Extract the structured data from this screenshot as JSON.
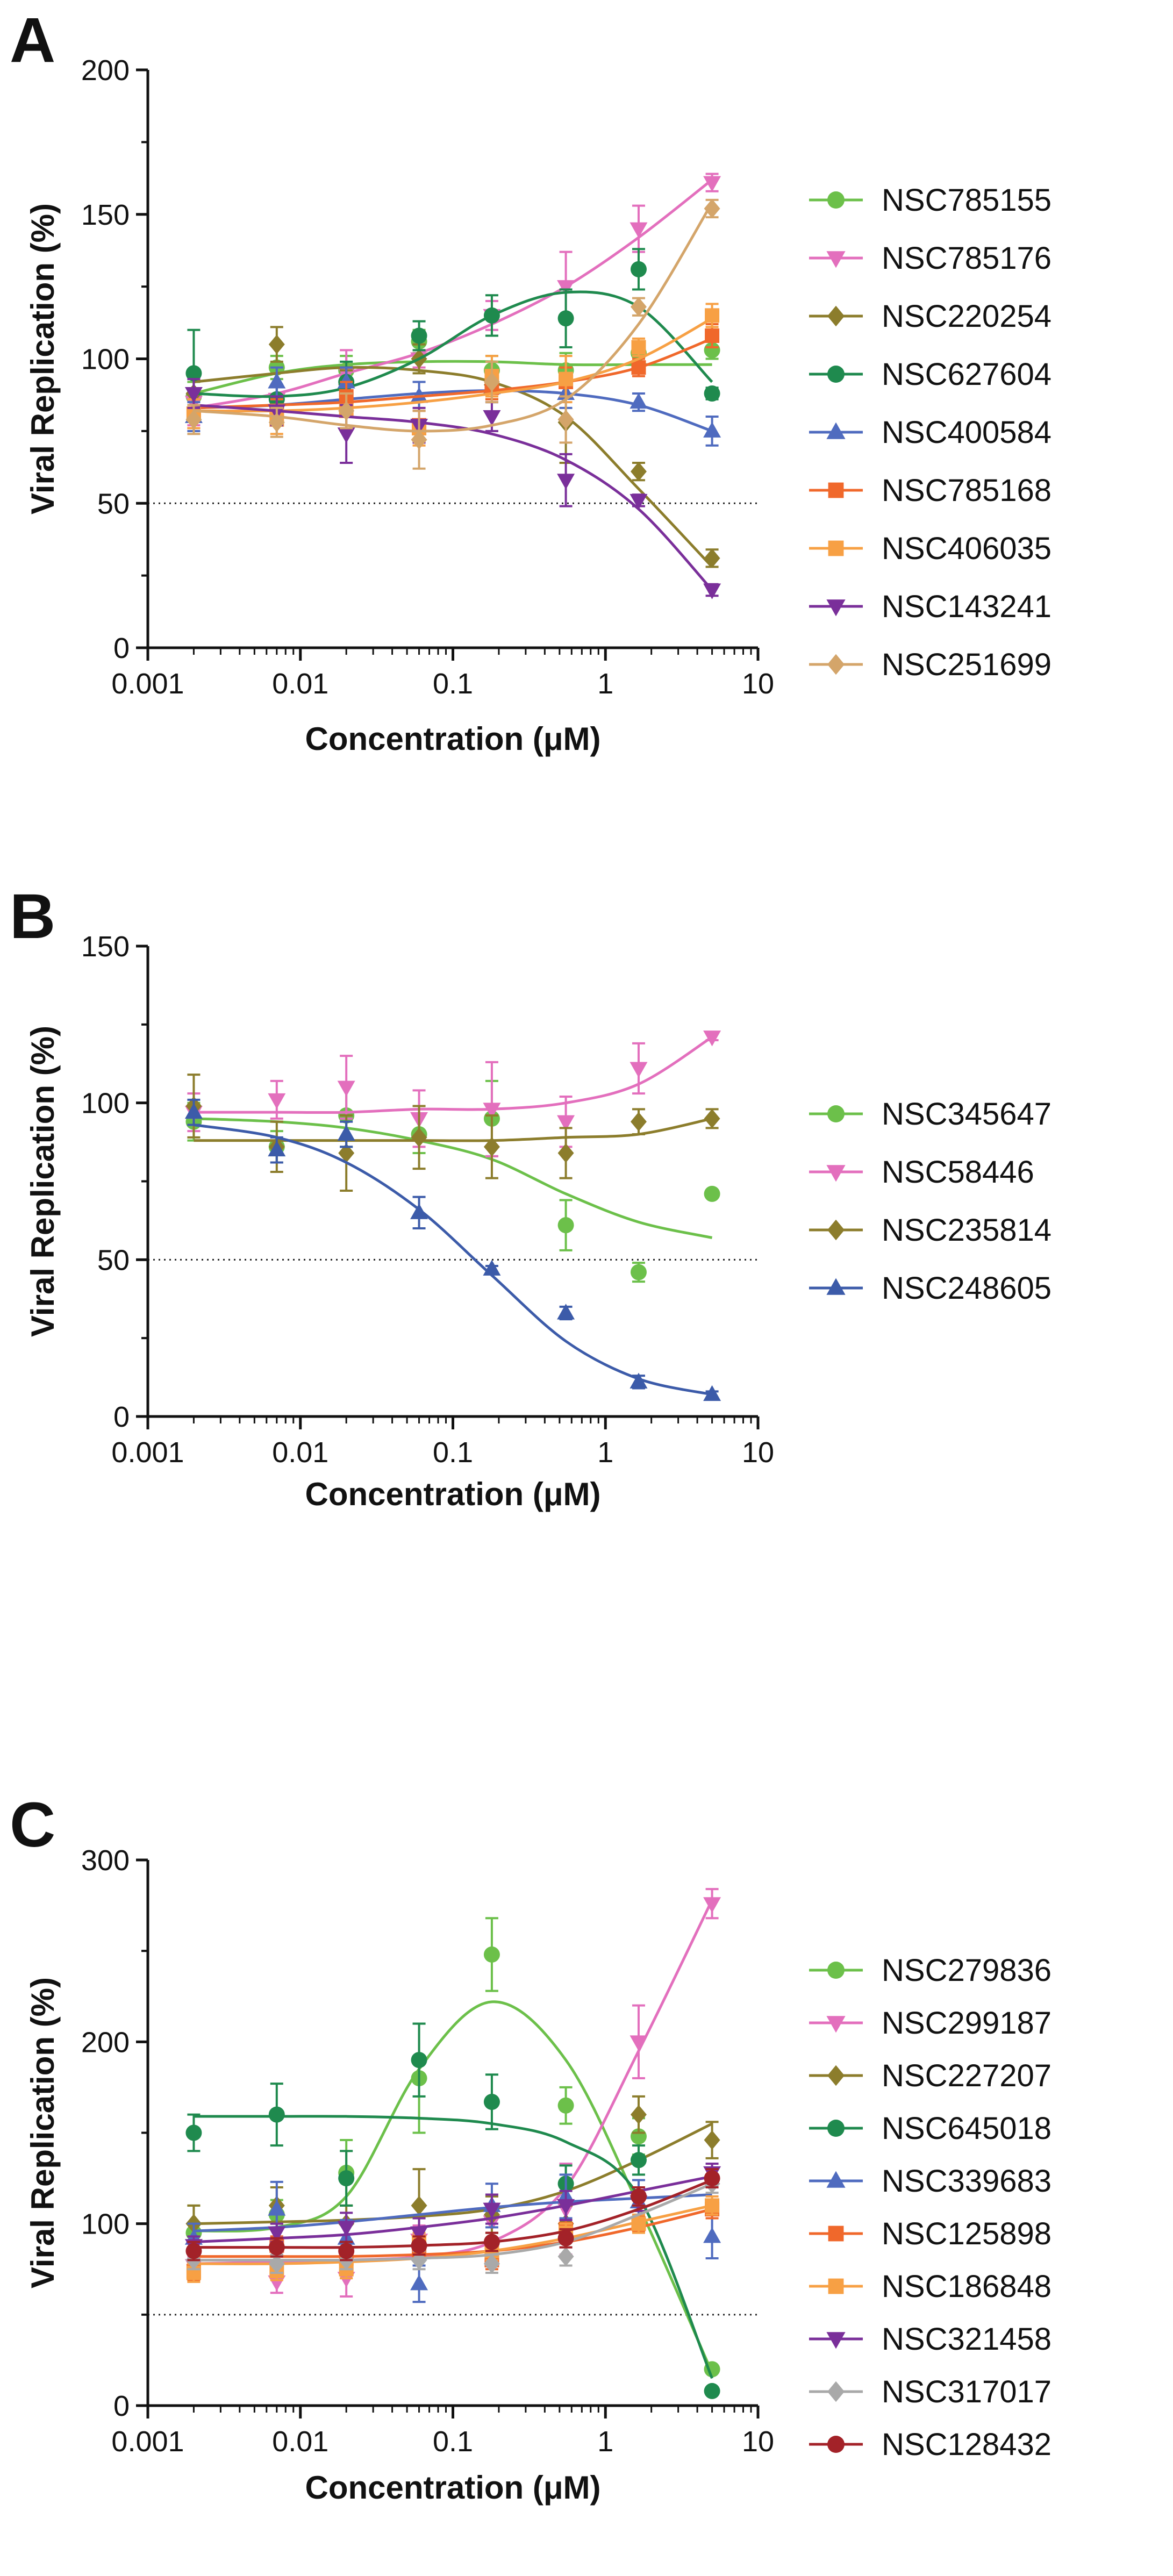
{
  "figure": {
    "panel_count": 3
  },
  "chart_data": [
    {
      "panel": "A",
      "type": "scatter",
      "title": "",
      "xlabel": "Concentration (μM)",
      "ylabel": "Viral Replication (%)",
      "xscale": "log",
      "xlim": [
        0.001,
        10
      ],
      "ylim": [
        0,
        200
      ],
      "x_ticks": [
        0.001,
        0.01,
        0.1,
        1,
        10
      ],
      "x_tick_labels": [
        "0.001",
        "0.01",
        "0.1",
        "1",
        "10"
      ],
      "y_ticks": [
        0,
        50,
        100,
        150,
        200
      ],
      "y_tick_labels": [
        "0",
        "50",
        "100",
        "150",
        "200"
      ],
      "reference_line": {
        "y": 50,
        "style": "dotted"
      },
      "legend_position": "right",
      "x": [
        0.002,
        0.007,
        0.02,
        0.06,
        0.18,
        0.55,
        1.65,
        5
      ],
      "series": [
        {
          "name": "NSC785155",
          "marker": "circle",
          "color": "#6cc04a",
          "values": [
            87,
            97,
            96,
            106,
            96,
            96,
            102,
            103
          ],
          "errors": [
            5,
            4,
            5,
            4,
            5,
            6,
            3,
            3
          ],
          "fit": [
            88,
            95,
            98,
            99,
            99,
            98,
            98,
            98
          ]
        },
        {
          "name": "NSC785176",
          "marker": "triangle-down",
          "color": "#e36fbd",
          "values": [
            85,
            86,
            95,
            100,
            115,
            125,
            145,
            161
          ],
          "errors": [
            8,
            5,
            8,
            3,
            5,
            12,
            8,
            3
          ],
          "fit": [
            83,
            88,
            95,
            102,
            112,
            125,
            142,
            162
          ]
        },
        {
          "name": "NSC220254",
          "marker": "diamond",
          "color": "#8c7d2c",
          "values": [
            88,
            105,
            91,
            100,
            91,
            78,
            61,
            31
          ],
          "errors": [
            7,
            6,
            5,
            5,
            5,
            14,
            3,
            3
          ],
          "fit": [
            92,
            95,
            97,
            96,
            92,
            80,
            55,
            28
          ]
        },
        {
          "name": "NSC627604",
          "marker": "circle",
          "color": "#1f8a4e",
          "values": [
            95,
            86,
            92,
            108,
            115,
            114,
            131,
            88
          ],
          "errors": [
            15,
            5,
            7,
            5,
            7,
            10,
            7,
            2
          ],
          "fit": [
            88,
            87,
            90,
            100,
            115,
            123,
            118,
            92
          ]
        },
        {
          "name": "NSC400584",
          "marker": "triangle-up",
          "color": "#4f6bbf",
          "values": [
            80,
            92,
            92,
            87,
            90,
            88,
            85,
            75
          ],
          "errors": [
            5,
            5,
            5,
            5,
            5,
            5,
            3,
            5
          ],
          "fit": [
            83,
            84,
            86,
            88,
            89,
            88,
            84,
            75
          ]
        },
        {
          "name": "NSC785168",
          "marker": "square",
          "color": "#f0682b",
          "values": [
            81,
            82,
            87,
            77,
            90,
            92,
            97,
            108
          ],
          "errors": [
            5,
            4,
            5,
            5,
            4,
            5,
            3,
            4
          ],
          "fit": [
            83,
            84,
            85,
            87,
            89,
            92,
            97,
            107
          ]
        },
        {
          "name": "NSC406035",
          "marker": "square",
          "color": "#f7a044",
          "values": [
            81,
            79,
            82,
            76,
            94,
            93,
            104,
            115
          ],
          "errors": [
            5,
            5,
            6,
            6,
            7,
            8,
            3,
            4
          ],
          "fit": [
            82,
            82,
            83,
            85,
            88,
            92,
            100,
            114
          ]
        },
        {
          "name": "NSC143241",
          "marker": "triangle-down",
          "color": "#7a2f9a",
          "values": [
            88,
            82,
            74,
            77,
            80,
            58,
            51,
            20
          ],
          "errors": [
            5,
            5,
            10,
            6,
            5,
            9,
            2,
            2
          ],
          "fit": [
            84,
            82,
            80,
            78,
            74,
            65,
            48,
            20
          ]
        },
        {
          "name": "NSC251699",
          "marker": "diamond",
          "color": "#d4a56a",
          "values": [
            79,
            78,
            82,
            72,
            92,
            79,
            118,
            152
          ],
          "errors": [
            5,
            5,
            6,
            10,
            7,
            8,
            3,
            3
          ],
          "fit": [
            82,
            80,
            77,
            75,
            77,
            86,
            112,
            154
          ]
        }
      ]
    },
    {
      "panel": "B",
      "type": "scatter",
      "title": "",
      "xlabel": "Concentration (μM)",
      "ylabel": "Viral Replication (%)",
      "xscale": "log",
      "xlim": [
        0.001,
        10
      ],
      "ylim": [
        0,
        150
      ],
      "x_ticks": [
        0.001,
        0.01,
        0.1,
        1,
        10
      ],
      "x_tick_labels": [
        "0.001",
        "0.01",
        "0.1",
        "1",
        "10"
      ],
      "y_ticks": [
        0,
        50,
        100,
        150
      ],
      "y_tick_labels": [
        "0",
        "50",
        "100",
        "150"
      ],
      "reference_line": {
        "y": 50,
        "style": "dotted"
      },
      "legend_position": "right",
      "x": [
        0.002,
        0.007,
        0.02,
        0.06,
        0.18,
        0.55,
        1.65,
        5
      ],
      "series": [
        {
          "name": "NSC345647",
          "marker": "circle",
          "color": "#6cc04a",
          "values": [
            94,
            86,
            96,
            90,
            95,
            61,
            46,
            71
          ],
          "errors": [
            6,
            5,
            10,
            6,
            12,
            8,
            3,
            1
          ],
          "fit": [
            95,
            94,
            92,
            88,
            82,
            71,
            62,
            57
          ]
        },
        {
          "name": "NSC58446",
          "marker": "triangle-down",
          "color": "#e36fbd",
          "values": [
            97,
            101,
            105,
            95,
            98,
            94,
            111,
            121
          ],
          "errors": [
            6,
            6,
            10,
            9,
            15,
            8,
            8,
            1
          ],
          "fit": [
            97,
            97,
            97,
            98,
            98,
            100,
            106,
            121
          ]
        },
        {
          "name": "NSC235814",
          "marker": "diamond",
          "color": "#8c7d2c",
          "values": [
            99,
            86,
            84,
            89,
            86,
            84,
            94,
            95
          ],
          "errors": [
            10,
            8,
            12,
            10,
            10,
            8,
            4,
            3
          ],
          "fit": [
            88,
            88,
            88,
            88,
            88,
            89,
            90,
            95
          ]
        },
        {
          "name": "NSC248605",
          "marker": "triangle-up",
          "color": "#3c5ba9",
          "values": [
            97,
            85,
            90,
            65,
            47,
            33,
            11,
            7
          ],
          "errors": [
            4,
            4,
            4,
            5,
            1,
            2,
            2,
            1
          ],
          "fit": [
            93,
            89,
            81,
            66,
            45,
            24,
            12,
            7
          ]
        }
      ]
    },
    {
      "panel": "C",
      "type": "scatter",
      "title": "",
      "xlabel": "Concentration (μM)",
      "ylabel": "Viral Replication (%)",
      "xscale": "log",
      "xlim": [
        0.001,
        10
      ],
      "ylim": [
        0,
        300
      ],
      "x_ticks": [
        0.001,
        0.01,
        0.1,
        1,
        10
      ],
      "x_tick_labels": [
        "0.001",
        "0.01",
        "0.1",
        "1",
        "10"
      ],
      "y_ticks": [
        0,
        100,
        200,
        300
      ],
      "y_tick_labels": [
        "0",
        "100",
        "200",
        "300"
      ],
      "reference_line": {
        "y": 50,
        "style": "dotted"
      },
      "legend_position": "right",
      "x": [
        0.002,
        0.007,
        0.02,
        0.06,
        0.18,
        0.55,
        1.65,
        5
      ],
      "series": [
        {
          "name": "NSC279836",
          "marker": "circle",
          "color": "#6cc04a",
          "values": [
            95,
            105,
            128,
            180,
            248,
            165,
            148,
            20
          ],
          "errors": [
            15,
            8,
            18,
            30,
            20,
            10,
            10,
            2
          ],
          "fit": [
            96,
            98,
            115,
            185,
            222,
            190,
            110,
            18
          ]
        },
        {
          "name": "NSC299187",
          "marker": "triangle-down",
          "color": "#e36fbd",
          "values": [
            77,
            68,
            70,
            91,
            101,
            108,
            200,
            276
          ],
          "errors": [
            5,
            6,
            10,
            8,
            10,
            25,
            20,
            8
          ],
          "fit": [
            78,
            79,
            80,
            82,
            90,
            120,
            195,
            278
          ]
        },
        {
          "name": "NSC227207",
          "marker": "diamond",
          "color": "#8c7d2c",
          "values": [
            100,
            110,
            100,
            110,
            105,
            100,
            160,
            146
          ],
          "errors": [
            10,
            10,
            10,
            20,
            10,
            10,
            10,
            10
          ],
          "fit": [
            100,
            101,
            102,
            104,
            108,
            118,
            135,
            155
          ]
        },
        {
          "name": "NSC645018",
          "marker": "circle",
          "color": "#1f8a4e",
          "values": [
            150,
            160,
            125,
            190,
            167,
            122,
            135,
            8
          ],
          "errors": [
            10,
            17,
            15,
            20,
            15,
            10,
            8,
            2
          ],
          "fit": [
            159,
            159,
            159,
            158,
            155,
            145,
            115,
            15
          ]
        },
        {
          "name": "NSC339683",
          "marker": "triangle-up",
          "color": "#4f6bbf",
          "values": [
            92,
            108,
            92,
            67,
            110,
            115,
            112,
            93
          ],
          "errors": [
            8,
            15,
            10,
            10,
            12,
            12,
            12,
            12
          ],
          "fit": [
            96,
            98,
            101,
            105,
            109,
            112,
            114,
            116
          ]
        },
        {
          "name": "NSC125898",
          "marker": "square",
          "color": "#f0682b",
          "values": [
            74,
            88,
            81,
            85,
            80,
            97,
            100,
            108
          ],
          "errors": [
            5,
            5,
            5,
            5,
            5,
            5,
            4,
            5
          ],
          "fit": [
            82,
            82,
            82,
            83,
            85,
            90,
            98,
            108
          ]
        },
        {
          "name": "NSC186848",
          "marker": "square",
          "color": "#f7a044",
          "values": [
            73,
            74,
            75,
            90,
            85,
            95,
            100,
            110
          ],
          "errors": [
            5,
            5,
            5,
            5,
            5,
            5,
            5,
            5
          ],
          "fit": [
            78,
            78,
            79,
            81,
            85,
            92,
            101,
            110
          ]
        },
        {
          "name": "NSC321458",
          "marker": "triangle-down",
          "color": "#7a2f9a",
          "values": [
            88,
            95,
            98,
            95,
            108,
            110,
            112,
            128
          ],
          "errors": [
            5,
            5,
            8,
            8,
            8,
            8,
            5,
            5
          ],
          "fit": [
            90,
            92,
            94,
            98,
            103,
            110,
            118,
            126
          ]
        },
        {
          "name": "NSC317017",
          "marker": "diamond",
          "color": "#a9a9a9",
          "values": [
            80,
            78,
            80,
            80,
            78,
            82,
            115,
            122
          ],
          "errors": [
            5,
            5,
            5,
            5,
            5,
            5,
            5,
            5
          ],
          "fit": [
            80,
            80,
            80,
            81,
            83,
            90,
            105,
            122
          ]
        },
        {
          "name": "NSC128432",
          "marker": "circle",
          "color": "#a32228",
          "values": [
            85,
            87,
            85,
            88,
            90,
            92,
            115,
            125
          ],
          "errors": [
            5,
            5,
            5,
            5,
            5,
            5,
            5,
            5
          ],
          "fit": [
            87,
            87,
            87,
            88,
            90,
            96,
            108,
            124
          ]
        }
      ]
    }
  ]
}
